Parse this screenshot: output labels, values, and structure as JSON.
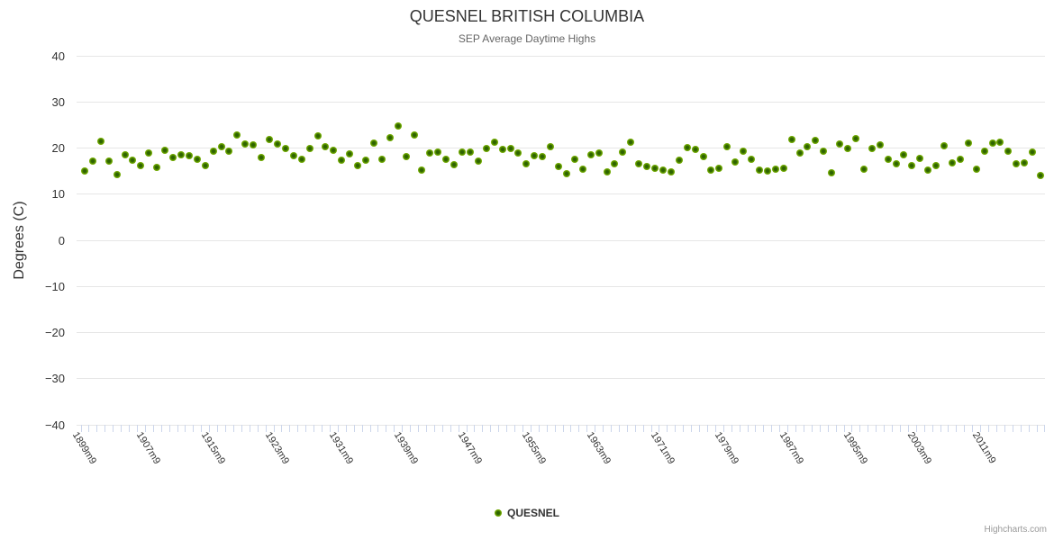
{
  "header": {
    "title": "QUESNEL BRITISH COLUMBIA",
    "subtitle": "SEP Average Daytime Highs"
  },
  "legend": {
    "items": [
      {
        "label": "QUESNEL",
        "marker_color": "#7ab500"
      }
    ]
  },
  "credits": "Highcharts.com",
  "colors": {
    "point_fill": "#7fbc06",
    "point_core": "#2d6300",
    "gridline": "#e6e6e6",
    "axis_line": "#ccd6eb",
    "title_text": "#333333",
    "subtitle_text": "#666666",
    "label_text": "#333333",
    "credits_text": "#999999",
    "background": "#ffffff"
  },
  "chart_data": {
    "type": "scatter",
    "title": "QUESNEL BRITISH COLUMBIA",
    "subtitle": "SEP Average Daytime Highs",
    "xlabel": "",
    "ylabel": "Degrees (C)",
    "ylim": [
      -40,
      40
    ],
    "yticks": [
      40,
      30,
      20,
      10,
      0,
      -10,
      -20,
      -30,
      -40
    ],
    "grid": "horizontal-only",
    "legend_position": "bottom-center",
    "x_tick_labels": [
      "1899m9",
      "1907m9",
      "1915m9",
      "1923m9",
      "1931m9",
      "1939m9",
      "1947m9",
      "1955m9",
      "1963m9",
      "1971m9",
      "1979m9",
      "1987m9",
      "1995m9",
      "2003m9",
      "2011m9"
    ],
    "x_label_interval_years": 8,
    "x_category_suffix": "m9",
    "x": [
      1899,
      1900,
      1901,
      1902,
      1903,
      1904,
      1905,
      1906,
      1907,
      1908,
      1909,
      1910,
      1911,
      1912,
      1913,
      1914,
      1915,
      1916,
      1917,
      1918,
      1919,
      1920,
      1921,
      1922,
      1923,
      1924,
      1925,
      1926,
      1927,
      1928,
      1929,
      1930,
      1931,
      1932,
      1933,
      1934,
      1935,
      1936,
      1937,
      1938,
      1939,
      1940,
      1941,
      1942,
      1943,
      1944,
      1945,
      1946,
      1947,
      1948,
      1949,
      1950,
      1951,
      1952,
      1953,
      1954,
      1955,
      1956,
      1957,
      1958,
      1959,
      1960,
      1961,
      1962,
      1963,
      1964,
      1965,
      1966,
      1967,
      1968,
      1969,
      1970,
      1971,
      1972,
      1973,
      1974,
      1975,
      1976,
      1977,
      1978,
      1979,
      1980,
      1981,
      1982,
      1983,
      1984,
      1985,
      1986,
      1987,
      1988,
      1989,
      1990,
      1991,
      1992,
      1993,
      1994,
      1995,
      1996,
      1997,
      1998,
      1999,
      2000,
      2001,
      2002,
      2003,
      2004,
      2005,
      2006,
      2007,
      2008,
      2009,
      2010,
      2011,
      2012,
      2013,
      2014,
      2015,
      2016,
      2017,
      2018
    ],
    "series": [
      {
        "name": "QUESNEL",
        "color": "#7fbc06",
        "values": [
          15.0,
          17.2,
          21.4,
          17.2,
          14.3,
          18.5,
          17.4,
          16.2,
          18.9,
          15.8,
          19.5,
          18.0,
          18.5,
          18.3,
          17.5,
          16.1,
          19.3,
          20.2,
          19.3,
          22.8,
          20.8,
          20.7,
          17.9,
          21.8,
          20.8,
          19.9,
          18.4,
          17.6,
          19.9,
          22.7,
          20.3,
          19.5,
          17.3,
          18.8,
          16.2,
          17.4,
          21.1,
          17.6,
          22.3,
          24.7,
          18.2,
          22.8,
          15.2,
          19.0,
          19.1,
          17.6,
          16.3,
          19.2,
          19.2,
          17.2,
          19.9,
          21.2,
          19.7,
          19.9,
          18.9,
          16.6,
          18.3,
          18.1,
          20.2,
          16.0,
          14.5,
          17.5,
          15.5,
          18.5,
          19.0,
          14.9,
          16.5,
          19.2,
          21.3,
          16.5,
          16.0,
          15.7,
          15.3,
          14.9,
          17.3,
          20.1,
          19.7,
          18.1,
          15.3,
          15.6,
          20.2,
          17.0,
          19.4,
          17.6,
          15.3,
          15.1,
          15.4,
          15.7,
          21.8,
          19.0,
          20.3,
          21.6,
          19.3,
          14.7,
          20.8,
          20.0,
          22.0,
          15.5,
          20.0,
          20.6,
          17.6,
          16.5,
          18.5,
          16.1,
          17.8,
          15.3,
          16.1,
          20.4,
          16.7,
          17.6,
          21.1,
          15.5,
          19.4,
          21.0,
          21.2,
          19.4,
          16.5,
          16.7,
          19.2,
          14.1
        ]
      }
    ]
  }
}
